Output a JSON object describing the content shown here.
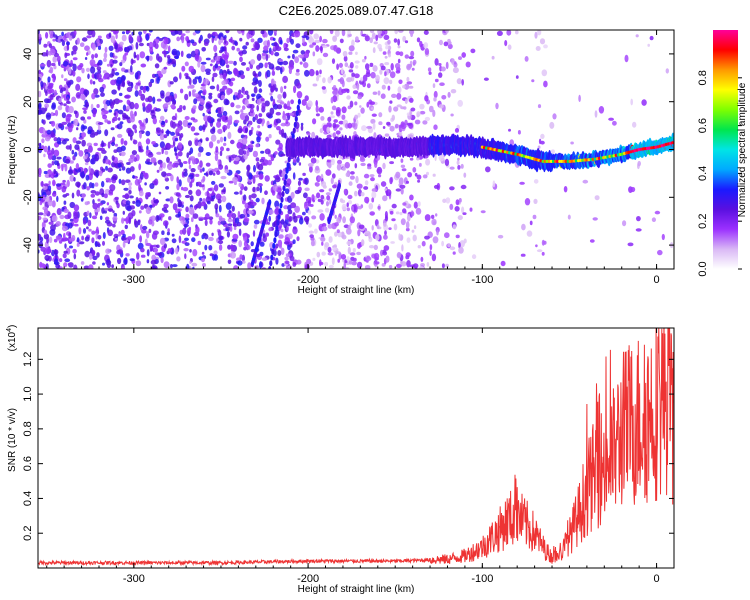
{
  "title": "C2E6.2025.089.07.47.G18",
  "chart_data": [
    {
      "type": "heatmap",
      "xlabel": "Height of straight line (km)",
      "ylabel": "Frequency (Hz)",
      "xlim": [
        -355,
        10
      ],
      "ylim": [
        -50,
        50
      ],
      "xticks": [
        -300,
        -200,
        -100,
        0
      ],
      "yticks": [
        -40,
        -20,
        0,
        20,
        40
      ],
      "colorbar": {
        "label": "Normalized spectral amplitude",
        "range": [
          0,
          1
        ],
        "ticks": [
          "0.0",
          "0.2",
          "0.4",
          "0.6",
          "0.8"
        ],
        "colors": [
          "#ffffff",
          "#d9b8f5",
          "#9b30ff",
          "#5a10e0",
          "#1a1aff",
          "#00aaff",
          "#00e5e5",
          "#00e64d",
          "#7fff00",
          "#ffff00",
          "#ff9900",
          "#ff0000",
          "#ff0099"
        ]
      },
      "ridge": [
        {
          "x": -210,
          "y": 1
        },
        {
          "x": -190,
          "y": 1
        },
        {
          "x": -160,
          "y": 1
        },
        {
          "x": -140,
          "y": 1
        },
        {
          "x": -120,
          "y": 2
        },
        {
          "x": -100,
          "y": 1
        },
        {
          "x": -80,
          "y": -2
        },
        {
          "x": -65,
          "y": -5
        },
        {
          "x": -50,
          "y": -5
        },
        {
          "x": -35,
          "y": -4
        },
        {
          "x": -20,
          "y": -2
        },
        {
          "x": -10,
          "y": 0
        },
        {
          "x": 0,
          "y": 1
        },
        {
          "x": 10,
          "y": 3
        }
      ]
    },
    {
      "type": "line",
      "xlabel": "Height of straight line (km)",
      "ylabel": "SNR (10 * v/v)",
      "yscale_label": "(x10",
      "yscale_exp": "4",
      "yscale_close": ")",
      "xlim": [
        -355,
        10
      ],
      "ylim": [
        0,
        1.38
      ],
      "xticks": [
        -300,
        -200,
        -100,
        0
      ],
      "yticks": [
        "0.2",
        "0.4",
        "0.6",
        "0.8",
        "1.0",
        "1.2"
      ],
      "color": "#ee3333",
      "series": [
        {
          "x": [
            -355,
            -300,
            -250,
            -200,
            -180,
            -150,
            -120,
            -110,
            -100,
            -90,
            -85,
            -80,
            -75,
            -70,
            -65,
            -60,
            -55,
            -50,
            -45,
            -40,
            -35,
            -30,
            -25,
            -20,
            -15,
            -10,
            -5,
            0,
            5,
            8,
            10
          ],
          "y": [
            0.03,
            0.03,
            0.03,
            0.04,
            0.04,
            0.04,
            0.05,
            0.07,
            0.12,
            0.22,
            0.28,
            0.3,
            0.25,
            0.2,
            0.12,
            0.06,
            0.08,
            0.18,
            0.3,
            0.45,
            0.55,
            0.6,
            0.65,
            0.78,
            0.82,
            0.86,
            0.88,
            0.95,
            1.0,
            1.1,
            0.7
          ]
        }
      ]
    }
  ]
}
